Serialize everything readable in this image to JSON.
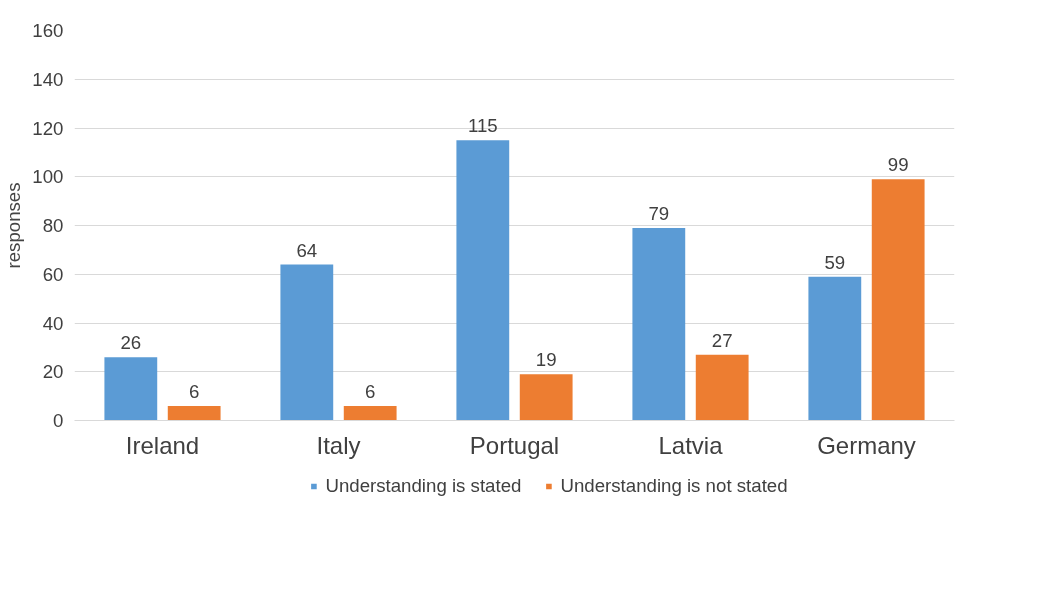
{
  "chart_data": {
    "type": "bar",
    "ylabel": "responses",
    "categories": [
      "Ireland",
      "Italy",
      "Portugal",
      "Latvia",
      "Germany"
    ],
    "series": [
      {
        "name": "Understanding is stated",
        "color": "#5b9bd5",
        "values": [
          26,
          64,
          115,
          79,
          59
        ]
      },
      {
        "name": "Understanding is not stated",
        "color": "#ed7d31",
        "values": [
          6,
          6,
          19,
          27,
          99
        ]
      }
    ],
    "ylim": [
      0,
      160
    ],
    "yticks": [
      0,
      20,
      40,
      60,
      80,
      100,
      120,
      140,
      160
    ],
    "grid": "y",
    "legend": "bottom",
    "data_labels": true
  }
}
